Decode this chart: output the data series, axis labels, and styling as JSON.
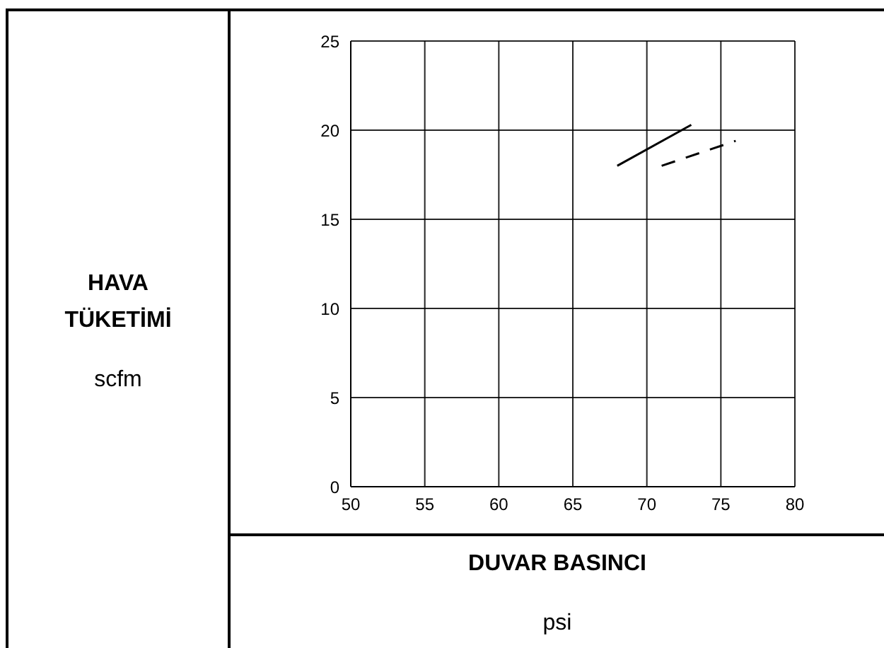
{
  "chart_data": {
    "type": "line",
    "xlabel": "DUVAR BASINCI",
    "annotations": [
      "HAVA TÜKETİMİ",
      "scfm",
      "psi"
    ],
    "xlim": [
      50,
      80
    ],
    "xticks": [
      50,
      55,
      60,
      65,
      70,
      75,
      80
    ],
    "ylim": [
      0,
      25
    ],
    "yticks": [
      0,
      5,
      10,
      15,
      20,
      25
    ],
    "grid": true,
    "marker": "none",
    "series": [
      {
        "color": "#000000",
        "line_style": "solid",
        "x": [
          68,
          73
        ],
        "values": [
          18,
          20.3
        ]
      },
      {
        "color": "#000000",
        "line_style": "dashed",
        "x": [
          71,
          76
        ],
        "values": [
          18,
          19.4
        ]
      }
    ]
  }
}
